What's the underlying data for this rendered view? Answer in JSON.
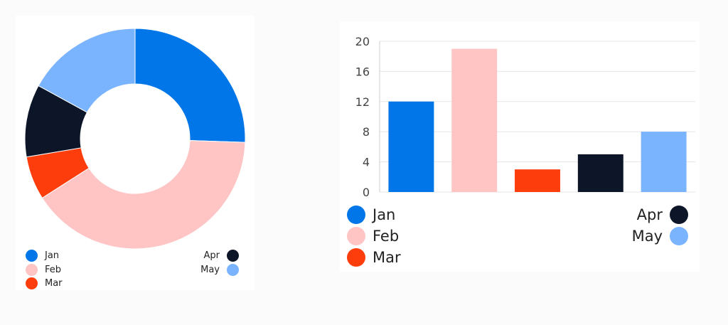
{
  "chart_data": [
    {
      "type": "pie",
      "donut": true,
      "categories": [
        "Jan",
        "Feb",
        "Mar",
        "Apr",
        "May"
      ],
      "values": [
        12,
        19,
        3,
        5,
        8
      ],
      "colors": [
        "#0176e8",
        "#ffc4c4",
        "#fe3d0c",
        "#0d1629",
        "#7ab3fe"
      ],
      "legend": {
        "left": [
          "Jan",
          "Feb",
          "Mar"
        ],
        "right": [
          "Apr",
          "May"
        ]
      }
    },
    {
      "type": "bar",
      "categories": [
        "Jan",
        "Feb",
        "Mar",
        "Apr",
        "May"
      ],
      "values": [
        12,
        19,
        3,
        5,
        8
      ],
      "colors": [
        "#0176e8",
        "#ffc4c4",
        "#fe3d0c",
        "#0d1629",
        "#7ab3fe"
      ],
      "ylim": [
        0,
        20
      ],
      "yticks": [
        "0",
        "4",
        "8",
        "12",
        "16",
        "20"
      ],
      "grid": true,
      "legend": {
        "left": [
          "Jan",
          "Feb",
          "Mar"
        ],
        "right": [
          "Apr",
          "May"
        ]
      }
    }
  ]
}
